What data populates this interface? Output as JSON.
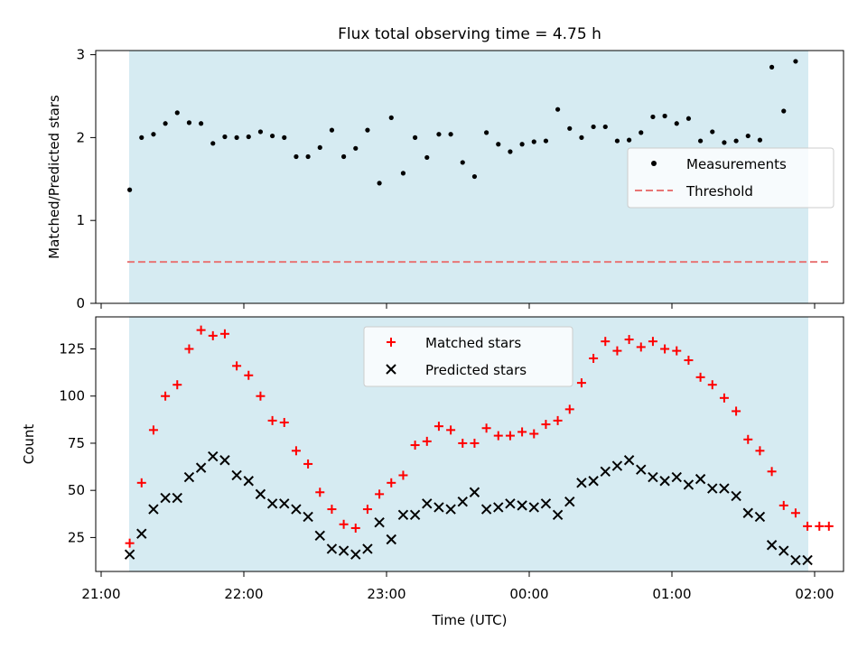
{
  "figure_title": "Flux total observing time = 4.75 h",
  "chart_data": [
    {
      "type": "scatter",
      "title": "Flux total observing time = 4.75 h",
      "ylabel": "Matched/Predicted stars",
      "xlabel": "",
      "xlim": [
        "21:00",
        "02:00"
      ],
      "ylim": [
        0,
        3.05
      ],
      "yticks": [
        "0",
        "1",
        "2",
        "3"
      ],
      "shaded_span": [
        "21:11",
        "02:06"
      ],
      "legend": {
        "position": "center-right",
        "entries": [
          "Measurements",
          "Threshold"
        ]
      },
      "threshold": {
        "name": "Threshold",
        "value": 0.5,
        "color": "#e87575",
        "style": "dashed"
      },
      "series": [
        {
          "name": "Measurements",
          "color": "#000000",
          "marker": "dot",
          "x": [
            "21:12",
            "21:17",
            "21:22",
            "21:27",
            "21:32",
            "21:37",
            "21:42",
            "21:47",
            "21:52",
            "21:57",
            "22:02",
            "22:07",
            "22:12",
            "22:17",
            "22:22",
            "22:27",
            "22:32",
            "22:37",
            "22:42",
            "22:47",
            "22:52",
            "22:57",
            "23:02",
            "23:07",
            "23:12",
            "23:17",
            "23:22",
            "23:27",
            "23:32",
            "23:37",
            "23:42",
            "23:47",
            "23:52",
            "23:57",
            "00:02",
            "00:07",
            "00:12",
            "00:17",
            "00:22",
            "00:27",
            "00:32",
            "00:37",
            "00:42",
            "00:47",
            "00:52",
            "00:57",
            "01:02",
            "01:07",
            "01:12",
            "01:17",
            "01:22",
            "01:27",
            "01:32",
            "01:37",
            "01:42",
            "01:47",
            "01:52"
          ],
          "y": [
            1.37,
            2.0,
            2.04,
            2.17,
            2.3,
            2.18,
            2.17,
            1.93,
            2.01,
            2.0,
            2.01,
            2.07,
            2.02,
            2.0,
            1.77,
            1.77,
            1.88,
            2.09,
            1.77,
            1.87,
            2.09,
            1.45,
            2.24,
            1.57,
            2.0,
            1.76,
            2.04,
            2.04,
            1.7,
            1.53,
            2.06,
            1.92,
            1.83,
            1.92,
            1.95,
            1.96,
            2.34,
            2.11,
            2.0,
            2.13,
            2.13,
            1.96,
            1.97,
            2.06,
            2.25,
            2.26,
            2.17,
            2.23,
            1.96,
            2.07,
            1.94,
            1.96,
            2.02,
            1.97,
            2.85,
            2.32,
            2.92
          ]
        }
      ]
    },
    {
      "type": "scatter",
      "title": "",
      "ylabel": "Count",
      "xlabel": "Time (UTC)",
      "xlim": [
        "21:00",
        "02:00"
      ],
      "ylim": [
        7,
        142
      ],
      "yticks": [
        "25",
        "50",
        "75",
        "100",
        "125"
      ],
      "xticks": [
        "21:00",
        "22:00",
        "23:00",
        "00:00",
        "01:00",
        "02:00"
      ],
      "shaded_span": [
        "21:11",
        "02:06"
      ],
      "legend": {
        "position": "top-center",
        "entries": [
          "Matched stars",
          "Predicted stars"
        ]
      },
      "series": [
        {
          "name": "Matched stars",
          "color": "#ff0000",
          "marker": "plus",
          "x": [
            "21:12",
            "21:17",
            "21:22",
            "21:27",
            "21:32",
            "21:37",
            "21:42",
            "21:47",
            "21:52",
            "21:57",
            "22:02",
            "22:07",
            "22:12",
            "22:17",
            "22:22",
            "22:27",
            "22:32",
            "22:37",
            "22:42",
            "22:47",
            "22:52",
            "22:57",
            "23:02",
            "23:07",
            "23:12",
            "23:17",
            "23:22",
            "23:27",
            "23:32",
            "23:37",
            "23:42",
            "23:47",
            "23:52",
            "23:57",
            "00:02",
            "00:07",
            "00:12",
            "00:17",
            "00:22",
            "00:27",
            "00:32",
            "00:37",
            "00:42",
            "00:47",
            "00:52",
            "00:57",
            "01:02",
            "01:07",
            "01:12",
            "01:17",
            "01:22",
            "01:27",
            "01:32",
            "01:37",
            "01:42",
            "01:47",
            "01:52",
            "01:57",
            "02:02",
            "02:06"
          ],
          "y": [
            22,
            54,
            82,
            100,
            106,
            125,
            135,
            132,
            133,
            116,
            111,
            100,
            87,
            86,
            71,
            64,
            49,
            40,
            32,
            30,
            40,
            48,
            54,
            58,
            74,
            76,
            84,
            82,
            75,
            75,
            83,
            79,
            79,
            81,
            80,
            85,
            87,
            93,
            107,
            120,
            129,
            124,
            130,
            126,
            129,
            125,
            124,
            119,
            110,
            106,
            99,
            92,
            77,
            71,
            60,
            42,
            38,
            31,
            31,
            31
          ]
        },
        {
          "name": "Predicted stars",
          "color": "#000000",
          "marker": "x",
          "x": [
            "21:12",
            "21:17",
            "21:22",
            "21:27",
            "21:32",
            "21:37",
            "21:42",
            "21:47",
            "21:52",
            "21:57",
            "22:02",
            "22:07",
            "22:12",
            "22:17",
            "22:22",
            "22:27",
            "22:32",
            "22:37",
            "22:42",
            "22:47",
            "22:52",
            "22:57",
            "23:02",
            "23:07",
            "23:12",
            "23:17",
            "23:22",
            "23:27",
            "23:32",
            "23:37",
            "23:42",
            "23:47",
            "23:52",
            "23:57",
            "00:02",
            "00:07",
            "00:12",
            "00:17",
            "00:22",
            "00:27",
            "00:32",
            "00:37",
            "00:42",
            "00:47",
            "00:52",
            "00:57",
            "01:02",
            "01:07",
            "01:12",
            "01:17",
            "01:22",
            "01:27",
            "01:32",
            "01:37",
            "01:42",
            "01:47",
            "01:52",
            "01:57"
          ],
          "y": [
            16,
            27,
            40,
            46,
            46,
            57,
            62,
            68,
            66,
            58,
            55,
            48,
            43,
            43,
            40,
            36,
            26,
            19,
            18,
            16,
            19,
            33,
            24,
            37,
            37,
            43,
            41,
            40,
            44,
            49,
            40,
            41,
            43,
            42,
            41,
            43,
            37,
            44,
            54,
            55,
            60,
            63,
            66,
            61,
            57,
            55,
            57,
            53,
            56,
            51,
            51,
            47,
            38,
            36,
            21,
            18,
            13,
            13
          ]
        }
      ]
    }
  ]
}
